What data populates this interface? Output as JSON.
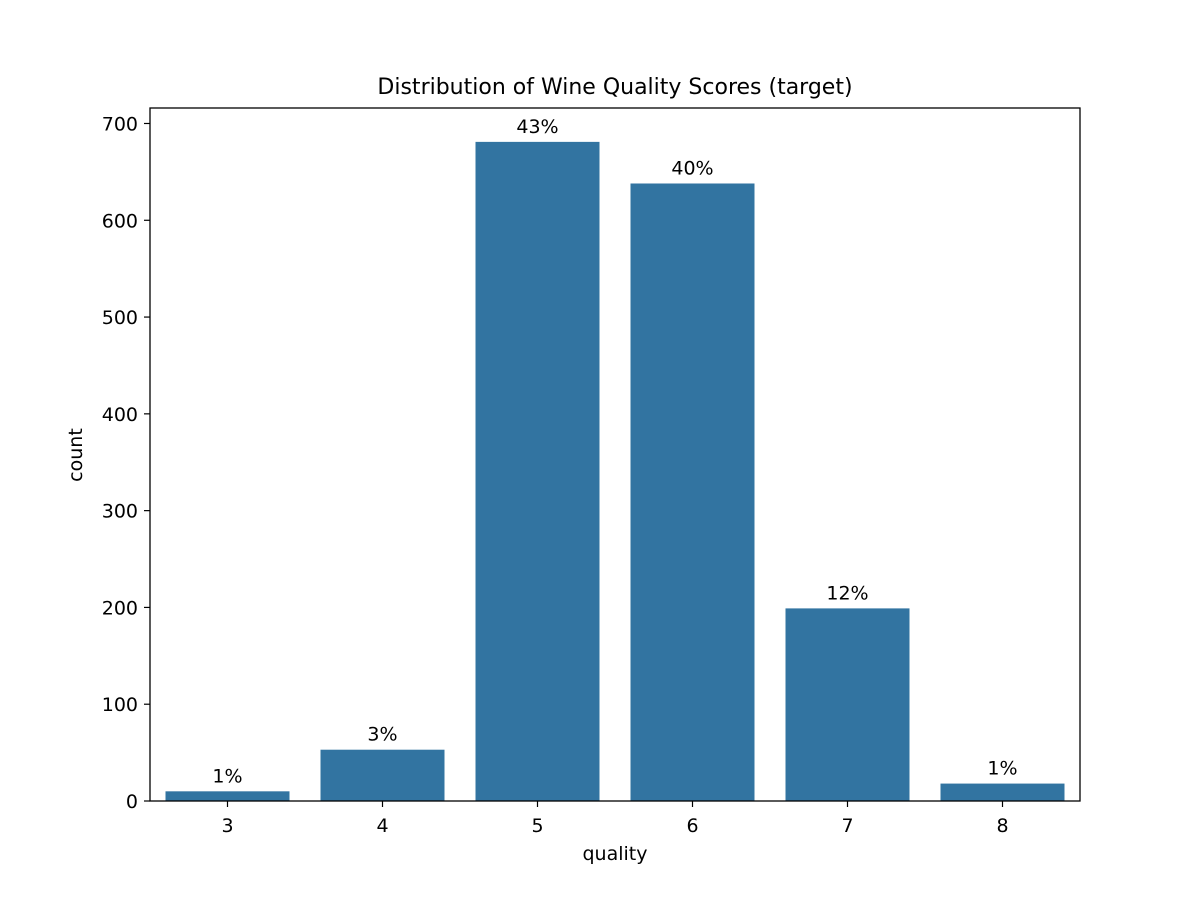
{
  "chart_data": {
    "type": "bar",
    "title": "Distribution of Wine Quality Scores (target)",
    "xlabel": "quality",
    "ylabel": "count",
    "categories": [
      "3",
      "4",
      "5",
      "6",
      "7",
      "8"
    ],
    "values": [
      10,
      53,
      681,
      638,
      199,
      18
    ],
    "data_labels": [
      "1%",
      "3%",
      "43%",
      "40%",
      "12%",
      "1%"
    ],
    "ylim": [
      0,
      716
    ],
    "yticks": [
      0,
      100,
      200,
      300,
      400,
      500,
      600,
      700
    ],
    "ytick_labels": [
      "0",
      "100",
      "200",
      "300",
      "400",
      "500",
      "600",
      "700"
    ],
    "grid": false,
    "bar_color": "#3274a1"
  }
}
